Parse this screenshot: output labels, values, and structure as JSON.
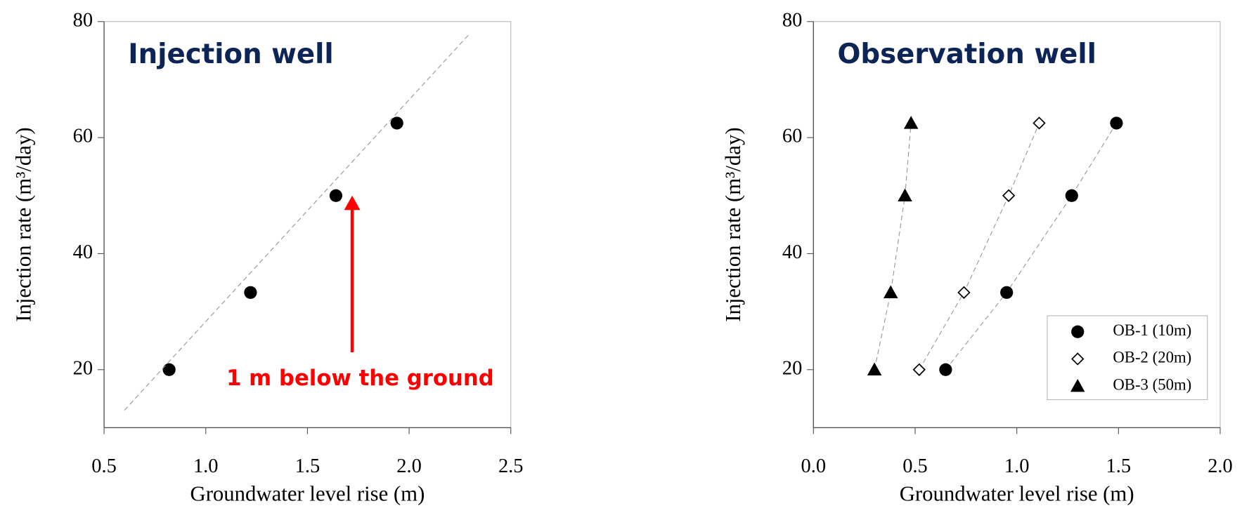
{
  "chart_data": [
    {
      "type": "scatter",
      "title": "Injection well",
      "x_label": "Groundwater level rise (m)",
      "y_label": "Injection rate (m³/day)",
      "xlim": [
        0.5,
        2.5
      ],
      "xticks": [
        {
          "value": 0.5,
          "label": "0.5"
        },
        {
          "value": 1.0,
          "label": "1.0"
        },
        {
          "value": 1.5,
          "label": "1.5"
        },
        {
          "value": 2.0,
          "label": "2.0"
        },
        {
          "value": 2.5,
          "label": "2.5"
        }
      ],
      "ylim": [
        10,
        80
      ],
      "yticks": [
        20,
        40,
        60,
        80
      ],
      "series": [
        {
          "x": [
            0.82,
            1.22,
            1.64,
            1.94
          ],
          "values": [
            20,
            33.3,
            50,
            62.5
          ],
          "color": "#000000",
          "marker": "circle",
          "line": "none"
        },
        {
          "x": [
            0.6,
            2.3
          ],
          "values": [
            13,
            78
          ],
          "color": "#999999",
          "marker": "none",
          "line": "dashed"
        }
      ],
      "annotation": {
        "text": "1 m below the ground",
        "color": "#ff0000",
        "x": 1.72,
        "y_from": 23,
        "y_to": 50
      }
    },
    {
      "type": "scatter",
      "title": "Observation well",
      "x_label": "Groundwater level rise (m)",
      "y_label": "Injection rate (m³/day)",
      "xlim": [
        0.0,
        2.0
      ],
      "xticks": [
        {
          "value": 0.0,
          "label": "0.0"
        },
        {
          "value": 0.5,
          "label": "0.5"
        },
        {
          "value": 1.0,
          "label": "1.0"
        },
        {
          "value": 1.5,
          "label": "1.5"
        },
        {
          "value": 2.0,
          "label": "2.0"
        }
      ],
      "ylim": [
        10,
        80
      ],
      "yticks": [
        20,
        40,
        60,
        80
      ],
      "legend": "lower right",
      "series": [
        {
          "name": "OB-1 (10m)",
          "x": [
            0.65,
            0.95,
            1.27,
            1.49
          ],
          "values": [
            20,
            33.3,
            50,
            62.5
          ],
          "color": "#000000",
          "marker": "circle",
          "line": "dashed"
        },
        {
          "name": "OB-2 (20m)",
          "x": [
            0.52,
            0.74,
            0.96,
            1.11
          ],
          "values": [
            20,
            33.3,
            50,
            62.5
          ],
          "color": "#000000",
          "marker": "diamond",
          "line": "dashed"
        },
        {
          "name": "OB-3 (50m)",
          "x": [
            0.3,
            0.38,
            0.45,
            0.48
          ],
          "values": [
            20,
            33.3,
            50,
            62.5
          ],
          "color": "#000000",
          "marker": "triangle",
          "line": "dashed"
        }
      ]
    }
  ]
}
